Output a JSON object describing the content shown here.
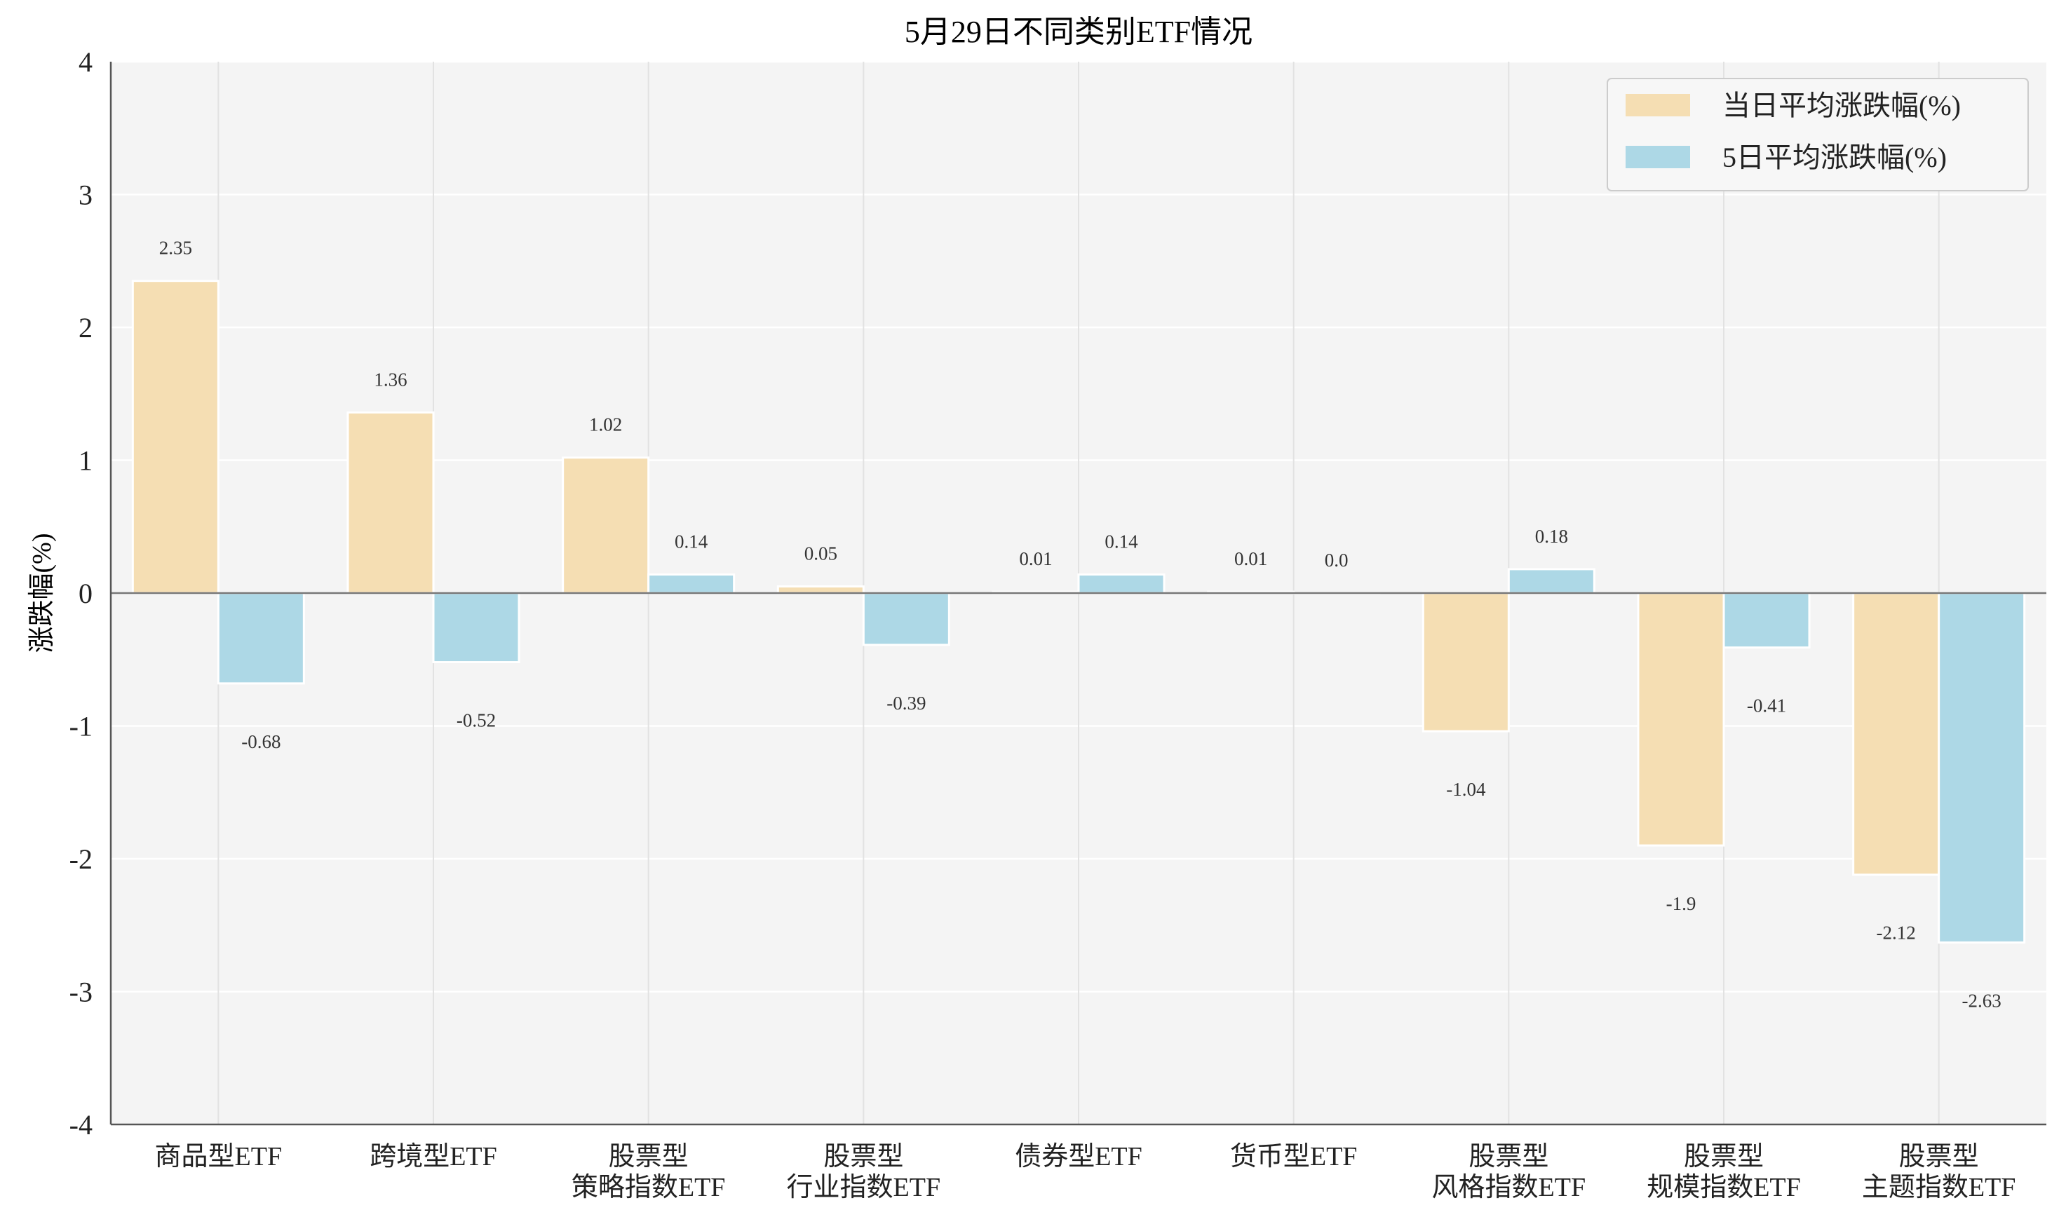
{
  "chart_data": {
    "type": "bar",
    "title": "5月29日不同类别ETF情况",
    "ylabel": "涨跌幅(%)",
    "xlabel": "",
    "ylim": [
      -4,
      4
    ],
    "yticks": [
      4,
      3,
      2,
      1,
      0,
      -1,
      -2,
      -3,
      -4
    ],
    "grid": true,
    "legend_position": "top-right",
    "categories": [
      [
        "商品型ETF"
      ],
      [
        "跨境型ETF"
      ],
      [
        "股票型",
        "策略指数ETF"
      ],
      [
        "股票型",
        "行业指数ETF"
      ],
      [
        "债券型ETF"
      ],
      [
        "货币型ETF"
      ],
      [
        "股票型",
        "风格指数ETF"
      ],
      [
        "股票型",
        "规模指数ETF"
      ],
      [
        "股票型",
        "主题指数ETF"
      ]
    ],
    "series": [
      {
        "name": "当日平均涨跌幅(%)",
        "color": "#F5DEB3",
        "values": [
          2.35,
          1.36,
          1.02,
          0.05,
          0.01,
          0.01,
          -1.04,
          -1.9,
          -2.12
        ],
        "labels": [
          "2.35",
          "1.36",
          "1.02",
          "0.05",
          "0.01",
          "0.01",
          "-1.04",
          "-1.9",
          "-2.12"
        ]
      },
      {
        "name": "5日平均涨跌幅(%)",
        "color": "#ADD8E6",
        "values": [
          -0.68,
          -0.52,
          0.14,
          -0.39,
          0.14,
          0.0,
          0.18,
          -0.41,
          -2.63
        ],
        "labels": [
          "-0.68",
          "-0.52",
          "0.14",
          "-0.39",
          "0.14",
          "0.0",
          "0.18",
          "-0.41",
          "-2.63"
        ]
      }
    ]
  }
}
